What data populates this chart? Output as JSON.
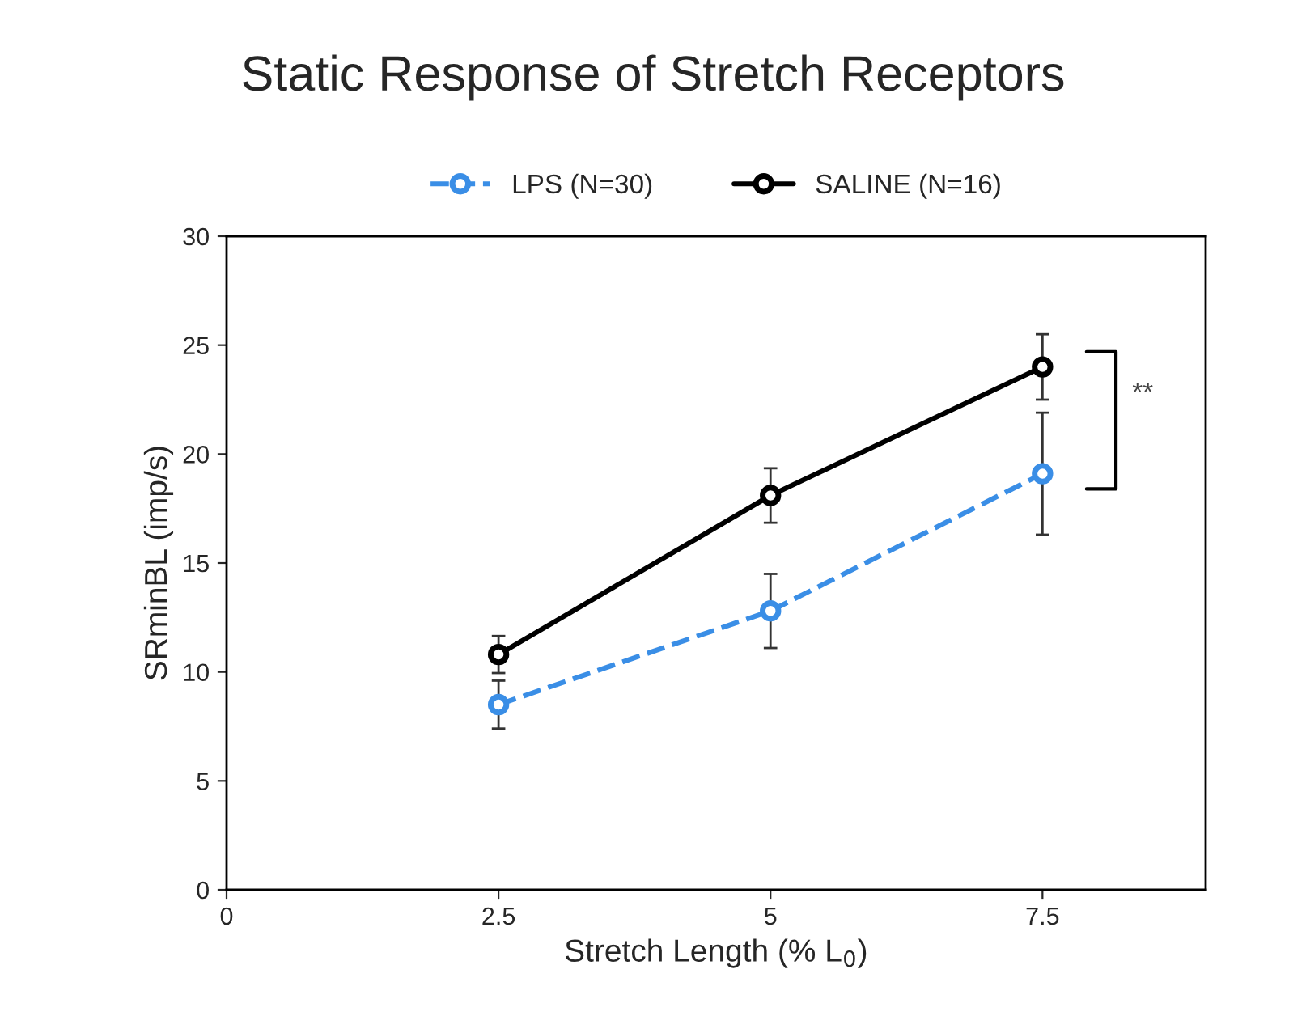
{
  "chart_data": {
    "type": "line",
    "title": "Static Response of Stretch Receptors",
    "xlabel": "Stretch Length (% L$_{0}$)",
    "ylabel": "SRminBL (imp/s)",
    "x": [
      2.5,
      5,
      7.5
    ],
    "series": [
      {
        "name": "LPS (N=30)",
        "color": "#3a8ee6",
        "values": [
          8.5,
          12.8,
          19.1
        ],
        "errors": [
          1.1,
          1.7,
          2.8
        ],
        "line_style": "dashed"
      },
      {
        "name": "SALINE (N=16)",
        "color": "#000000",
        "values": [
          10.8,
          18.1,
          24.0
        ],
        "errors": [
          0.85,
          1.25,
          1.5
        ],
        "line_style": "solid"
      }
    ],
    "xlim": [
      0,
      9
    ],
    "xticks": [
      0,
      2.5,
      5,
      7.5
    ],
    "ylim": [
      0,
      30
    ],
    "yticks": [
      0,
      5,
      10,
      15,
      20,
      25,
      30
    ],
    "annotations": [
      "**"
    ],
    "marker": "circle",
    "grid": false,
    "legend": "top"
  }
}
